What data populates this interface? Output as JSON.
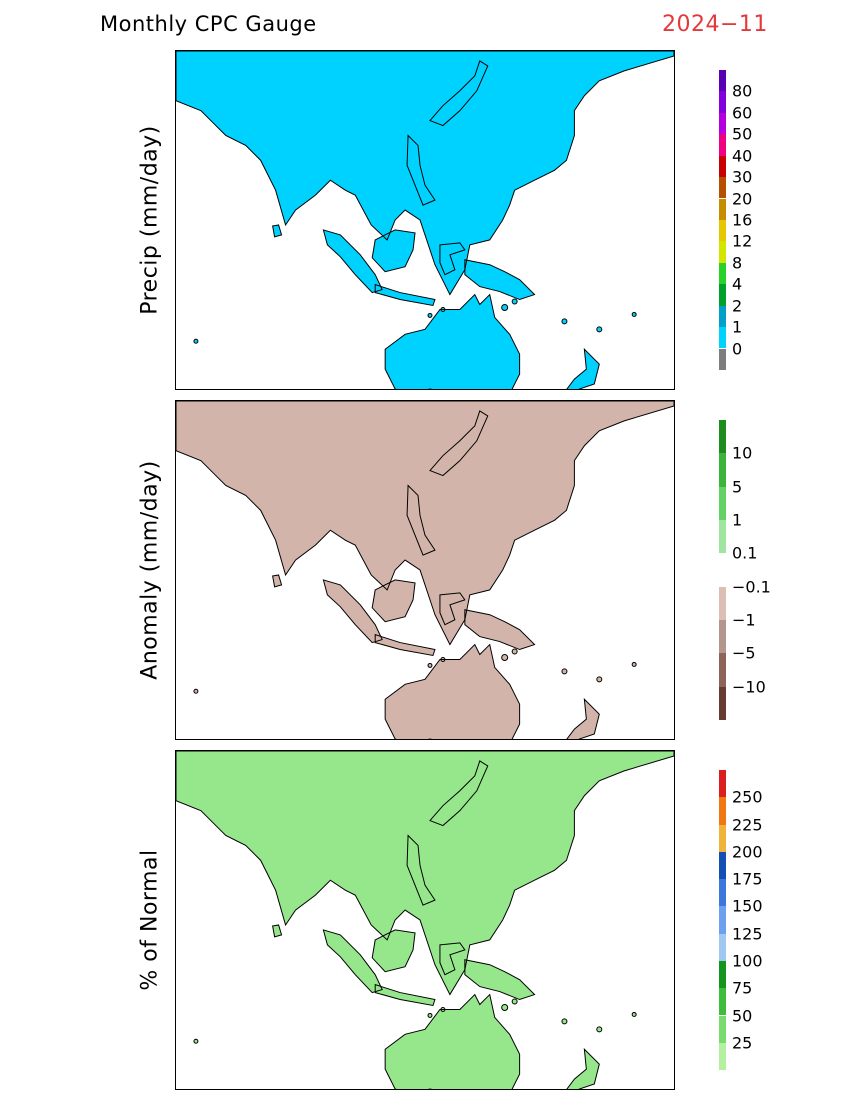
{
  "header": {
    "title": "Monthly CPC Gauge",
    "date": "2024−11"
  },
  "panels": [
    {
      "id": "precip",
      "ylabel": "Precip (mm/day)",
      "legend": {
        "labels": [
          "0",
          "1",
          "2",
          "4",
          "8",
          "12",
          "16",
          "20",
          "30",
          "40",
          "50",
          "60",
          "80"
        ],
        "colors": [
          "#7d7d7d",
          "#00d2ff",
          "#00a0c8",
          "#00a02d",
          "#28d228",
          "#d2e600",
          "#e6c800",
          "#c88c00",
          "#b45000",
          "#c80000",
          "#f00082",
          "#b400dc",
          "#8200dc",
          "#5a00b4"
        ]
      },
      "map_colors": {
        "land_base": "#00d2ff",
        "dry": "#7d7d7d",
        "wet1": "#00a0c8",
        "wet2": "#00a02d",
        "wet3": "#28d228",
        "wet4": "#d2e600",
        "wet5": "#c88c00",
        "wet6": "#b45000"
      }
    },
    {
      "id": "anomaly",
      "ylabel": "Anomaly (mm/day)",
      "legend": {
        "labels": [
          "10",
          "5",
          "1",
          "0.1",
          "−0.1",
          "−1",
          "−5",
          "−10"
        ],
        "colors": [
          "#1e8c1e",
          "#3cb43c",
          "#64d264",
          "#a0e6a0",
          "#ffffff",
          "#dcbeb4",
          "#b4968c",
          "#8c6458",
          "#643c32"
        ]
      },
      "map_colors": {
        "land_base": "#d2b4aa",
        "wet1": "#96e696",
        "wet2": "#50c850",
        "dry1": "#a07a6e",
        "dry2": "#785046",
        "neutral": "#ffffff"
      }
    },
    {
      "id": "percent",
      "ylabel": "% of Normal",
      "legend": {
        "labels": [
          "25",
          "50",
          "75",
          "100",
          "125",
          "150",
          "175",
          "200",
          "225",
          "250"
        ],
        "colors": [
          "#b4f0a0",
          "#78dc6e",
          "#3cbe3c",
          "#14961e",
          "#a0c8f0",
          "#6ea0f0",
          "#3c78dc",
          "#1450b4",
          "#f0b43c",
          "#f07814",
          "#dc1e1e"
        ]
      },
      "map_colors": {
        "land_base": "#96e68c",
        "green": "#28b428",
        "blue": "#4a8ce6",
        "dark_blue": "#1e50c8",
        "red": "#e61e14",
        "orange": "#f08c28"
      }
    }
  ]
}
